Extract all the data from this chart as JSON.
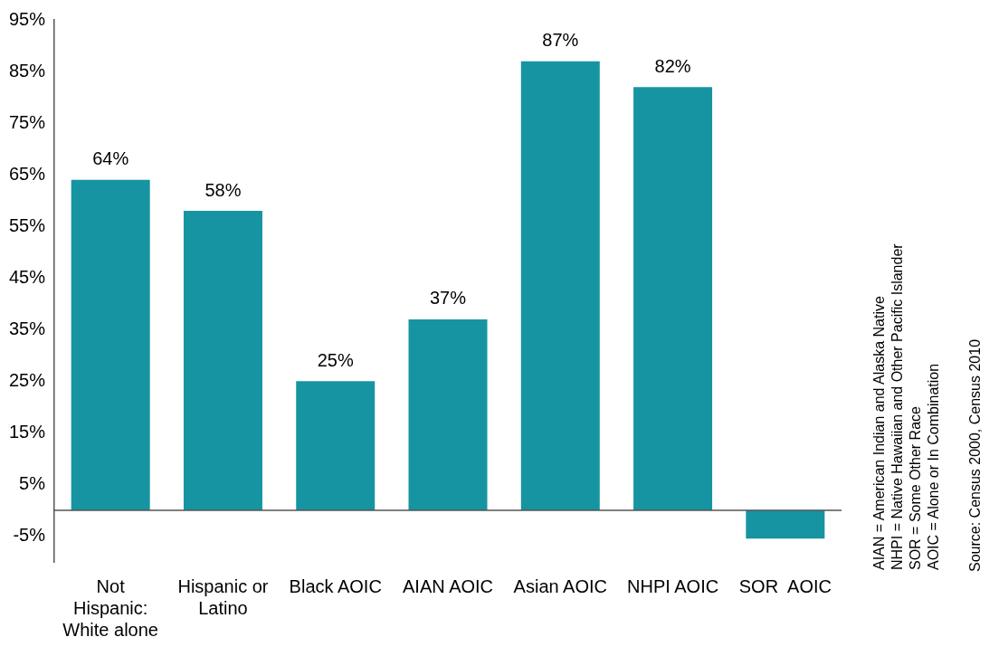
{
  "chart_data": {
    "type": "bar",
    "categories": [
      "Not Hispanic: White alone",
      "Hispanic or Latino",
      "Black AOIC",
      "AIAN AOIC",
      "Asian AOIC",
      "NHPI AOIC",
      "SOR  AOIC"
    ],
    "values": [
      64,
      58,
      25,
      37,
      87,
      82,
      -5.5
    ],
    "value_labels": [
      "64%",
      "58%",
      "25%",
      "37%",
      "87%",
      "82%",
      null
    ],
    "color": "#1694a2",
    "ylim": [
      -10,
      95
    ],
    "yticks": [
      {
        "value": -5,
        "label": "-5%"
      },
      {
        "value": 5,
        "label": "5%"
      },
      {
        "value": 15,
        "label": "15%"
      },
      {
        "value": 25,
        "label": "25%"
      },
      {
        "value": 35,
        "label": "35%"
      },
      {
        "value": 45,
        "label": "45%"
      },
      {
        "value": 55,
        "label": "55%"
      },
      {
        "value": 65,
        "label": "65%"
      },
      {
        "value": 75,
        "label": "75%"
      },
      {
        "value": 85,
        "label": "85%"
      },
      {
        "value": 95,
        "label": "95%"
      }
    ],
    "grid": false,
    "legend": false,
    "annotations": [
      "AIAN = American Indian and Alaska Native",
      "NHPI = Native Hawaiian and Other Pacific Islander",
      "SOR = Some Other  Race",
      "AOIC = Alone or In Combination",
      "Source: Census 2000, Census 2010"
    ]
  }
}
